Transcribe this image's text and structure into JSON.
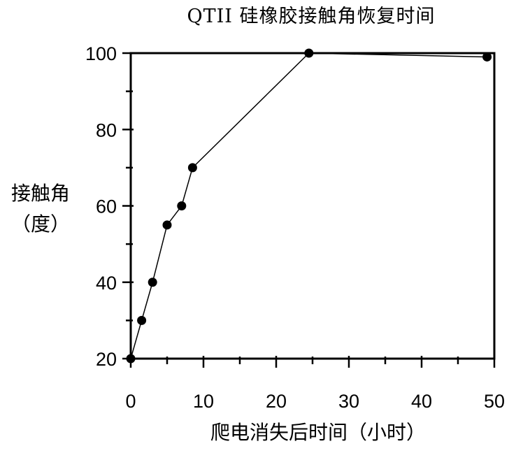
{
  "chart_data": {
    "type": "line",
    "title": "QTII 硅橡胶接触角恢复时间",
    "xlabel": "爬电消失后时间（小时）",
    "ylabel_line1": "接触角",
    "ylabel_line2": "（度）",
    "xlim": [
      0,
      50
    ],
    "ylim": [
      20,
      100
    ],
    "x_ticks": [
      0,
      10,
      20,
      30,
      40,
      50
    ],
    "y_ticks": [
      20,
      40,
      60,
      80,
      100
    ],
    "grid": false,
    "series": [
      {
        "x": [
          0,
          1.5,
          3,
          5,
          7,
          8.5,
          24.5,
          49
        ],
        "y": [
          20,
          30,
          40,
          55,
          60,
          70,
          100,
          99
        ]
      }
    ]
  }
}
